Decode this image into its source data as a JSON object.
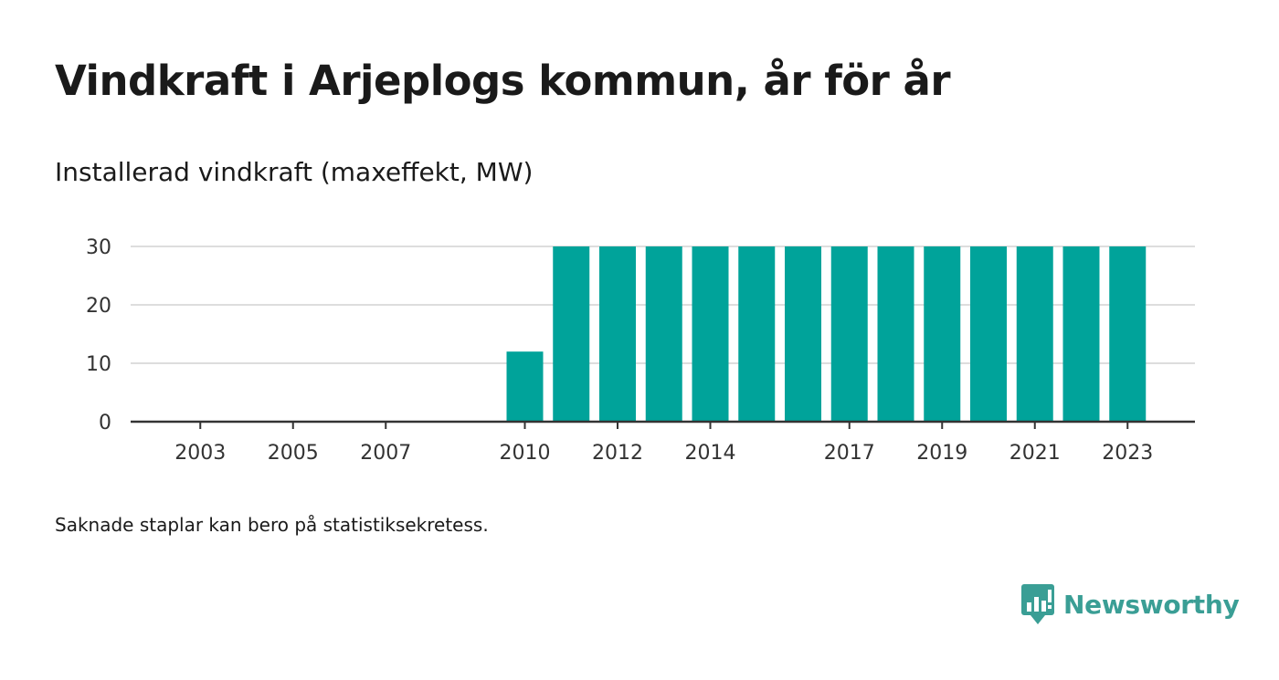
{
  "header": {
    "title": "Vindkraft i Arjeplogs kommun, år för år",
    "subtitle": "Installerad vindkraft (maxeffekt, MW)"
  },
  "footer": {
    "note": "Saknade staplar kan bero på statistiksekretess.",
    "brand": "Newsworthy"
  },
  "colors": {
    "bar": "#00a39a",
    "grid": "#dddddd",
    "axis": "#333333",
    "brand": "#3a9e95"
  },
  "chart_data": {
    "type": "bar",
    "title": "Vindkraft i Arjeplogs kommun, år för år",
    "subtitle": "Installerad vindkraft (maxeffekt, MW)",
    "xlabel": "",
    "ylabel": "",
    "categories": [
      2002,
      2003,
      2004,
      2005,
      2006,
      2007,
      2008,
      2009,
      2010,
      2011,
      2012,
      2013,
      2014,
      2015,
      2016,
      2017,
      2018,
      2019,
      2020,
      2021,
      2022,
      2023
    ],
    "values": [
      0,
      0,
      0,
      0,
      0,
      0,
      0,
      0,
      12,
      30,
      30,
      30,
      30,
      30,
      30,
      30,
      30,
      30,
      30,
      30,
      30,
      30
    ],
    "x_tick_labels": [
      "2003",
      "2005",
      "2007",
      "2010",
      "2012",
      "2014",
      "2017",
      "2019",
      "2021",
      "2023"
    ],
    "y_ticks": [
      0,
      10,
      20,
      30
    ],
    "ylim": [
      0,
      30
    ],
    "grid": true,
    "legend": "none"
  }
}
